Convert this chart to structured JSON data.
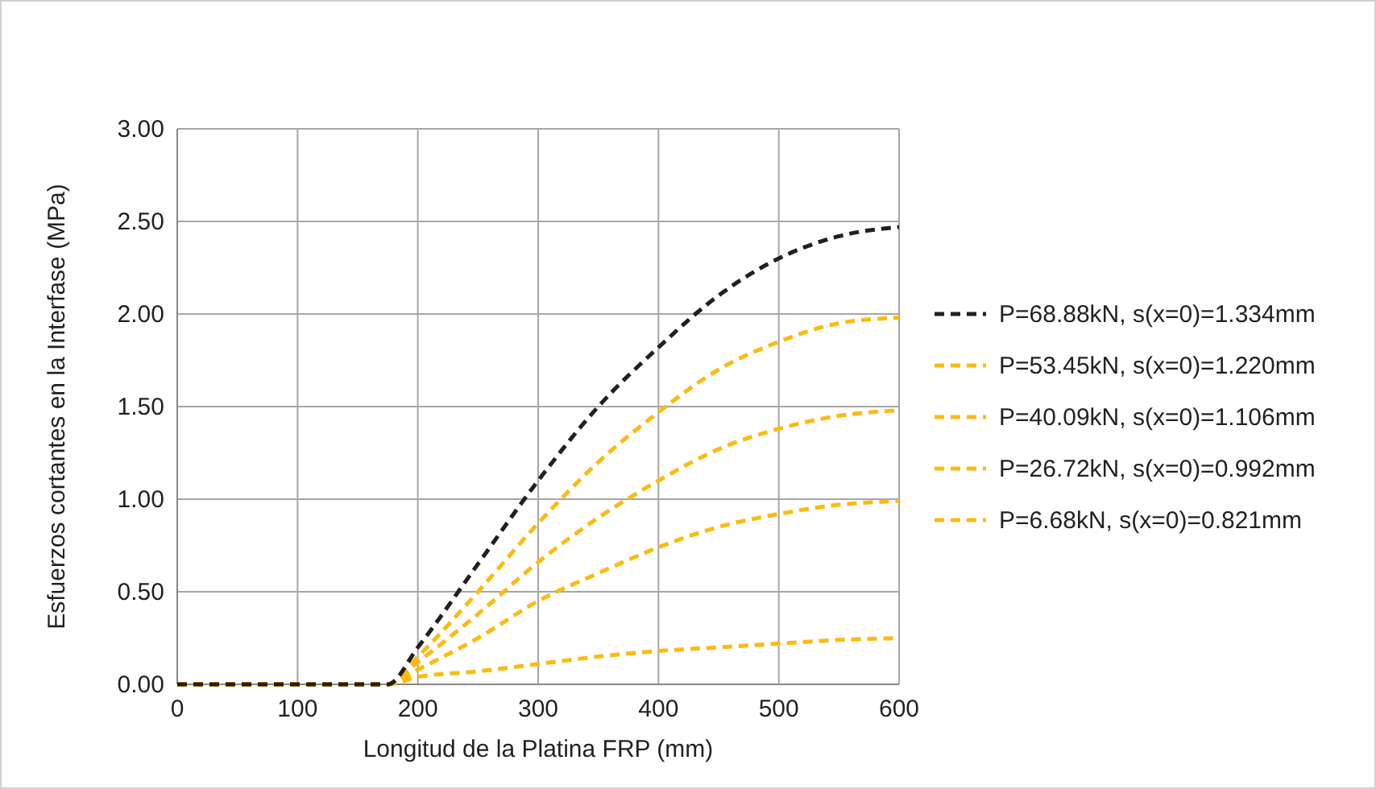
{
  "chart_data": {
    "type": "line",
    "xlabel": "Longitud de la Platina FRP (mm)",
    "ylabel": "Esfuerzos cortantes en la Interfase (MPa)",
    "x": [
      0,
      100,
      175,
      200,
      250,
      300,
      350,
      400,
      450,
      500,
      550,
      600
    ],
    "series": [
      {
        "name": "P=68.88kN, s(x=0)=1.334mm",
        "color": "#231f20",
        "values": [
          0,
          0,
          0,
          0.2,
          0.65,
          1.1,
          1.5,
          1.82,
          2.1,
          2.3,
          2.42,
          2.47
        ]
      },
      {
        "name": "P=53.45kN, s(x=0)=1.220mm",
        "color": "#fdbb11",
        "values": [
          0,
          0,
          0,
          0.15,
          0.5,
          0.87,
          1.2,
          1.47,
          1.7,
          1.85,
          1.95,
          1.98
        ]
      },
      {
        "name": "P=40.09kN, s(x=0)=1.106mm",
        "color": "#fdbb11",
        "values": [
          0,
          0,
          0,
          0.12,
          0.38,
          0.66,
          0.9,
          1.1,
          1.27,
          1.38,
          1.45,
          1.48
        ]
      },
      {
        "name": "P=26.72kN, s(x=0)=0.992mm",
        "color": "#fdbb11",
        "values": [
          0,
          0,
          0,
          0.08,
          0.25,
          0.45,
          0.6,
          0.74,
          0.85,
          0.92,
          0.97,
          0.99
        ]
      },
      {
        "name": "P=6.68kN, s(x=0)=0.821mm",
        "color": "#fdbb11",
        "values": [
          0,
          0,
          0,
          0.04,
          0.07,
          0.11,
          0.15,
          0.18,
          0.2,
          0.22,
          0.24,
          0.25
        ]
      }
    ],
    "xlim": [
      0,
      600
    ],
    "xticks": [
      0,
      100,
      200,
      300,
      400,
      500,
      600
    ],
    "ylim": [
      0,
      3
    ],
    "yticks": [
      {
        "value": 0,
        "label": "0.00"
      },
      {
        "value": 0.5,
        "label": "0.50"
      },
      {
        "value": 1,
        "label": "1.00"
      },
      {
        "value": 1.5,
        "label": "1.50"
      },
      {
        "value": 2,
        "label": "2.00"
      },
      {
        "value": 2.5,
        "label": "2.50"
      },
      {
        "value": 3,
        "label": "3.00"
      }
    ],
    "grid": true,
    "legend": "right",
    "line_style": "dashed",
    "marker": "none"
  }
}
